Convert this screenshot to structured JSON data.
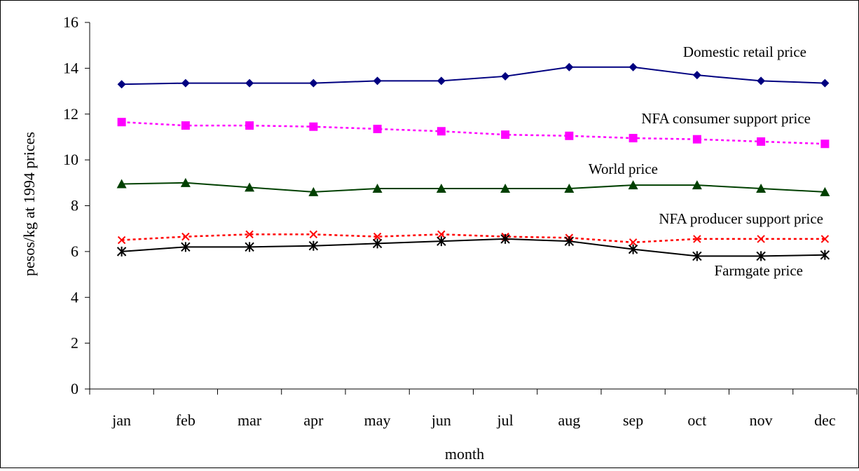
{
  "chart_data": {
    "type": "line",
    "title": "",
    "xlabel": "month",
    "ylabel": "pesos/kg at 1994 prices",
    "categories": [
      "jan",
      "feb",
      "mar",
      "apr",
      "may",
      "jun",
      "jul",
      "aug",
      "sep",
      "oct",
      "nov",
      "dec"
    ],
    "ylim": [
      0,
      16
    ],
    "yticks": [
      0,
      2,
      4,
      6,
      8,
      10,
      12,
      14,
      16
    ],
    "ytick_labels": [
      "0",
      "2",
      "4",
      "6",
      "8",
      "10",
      "12",
      "14",
      "16"
    ],
    "grid": false,
    "legend": "none",
    "series": [
      {
        "name": "Domestic retail price",
        "color": "#000080",
        "marker": "diamond",
        "line_style": "solid",
        "values": [
          13.3,
          13.35,
          13.35,
          13.35,
          13.45,
          13.45,
          13.65,
          14.05,
          14.05,
          13.7,
          13.45,
          13.35
        ]
      },
      {
        "name": "NFA consumer support price",
        "color": "#ff00ff",
        "marker": "square",
        "line_style": "dotted",
        "values": [
          11.65,
          11.5,
          11.5,
          11.45,
          11.35,
          11.25,
          11.1,
          11.05,
          10.95,
          10.9,
          10.8,
          10.7
        ]
      },
      {
        "name": "World price",
        "color": "#004000",
        "marker": "triangle",
        "line_style": "solid",
        "values": [
          8.95,
          9.0,
          8.8,
          8.6,
          8.75,
          8.75,
          8.75,
          8.75,
          8.9,
          8.9,
          8.75,
          8.6
        ]
      },
      {
        "name": "NFA producer support price",
        "color": "#ff0000",
        "marker": "x",
        "line_style": "dotted",
        "values": [
          6.5,
          6.65,
          6.75,
          6.75,
          6.65,
          6.75,
          6.65,
          6.6,
          6.4,
          6.55,
          6.55,
          6.55
        ]
      },
      {
        "name": "Farmgate price",
        "color": "#000000",
        "marker": "asterisk",
        "line_style": "solid",
        "values": [
          6.0,
          6.2,
          6.2,
          6.25,
          6.35,
          6.45,
          6.55,
          6.45,
          6.1,
          5.8,
          5.8,
          5.85
        ]
      }
    ]
  }
}
